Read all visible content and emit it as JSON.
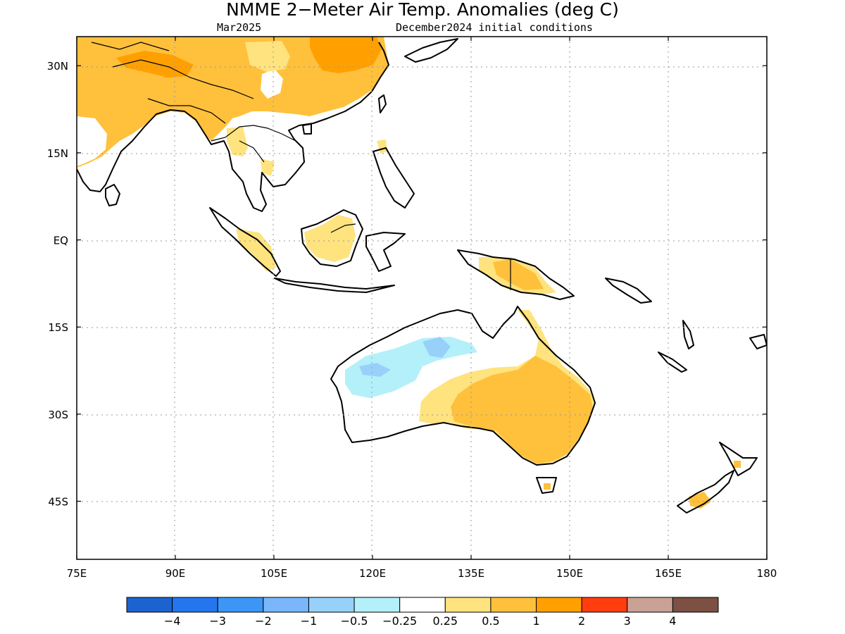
{
  "title": "NMME 2−Meter Air Temp. Anomalies (deg C)",
  "valid_month": "Mar2025",
  "initial_conditions": "December2024 initial conditions",
  "map": {
    "lon_range": [
      75,
      180
    ],
    "lat_range": [
      -55,
      35
    ],
    "lon_ticks": [
      "75E",
      "90E",
      "105E",
      "120E",
      "135E",
      "150E",
      "165E",
      "180"
    ],
    "lat_ticks": [
      "30N",
      "15N",
      "EQ",
      "15S",
      "30S",
      "45S"
    ]
  },
  "legend": {
    "colors": [
      "#1d63cf",
      "#2476ee",
      "#3c96f5",
      "#79b6fa",
      "#97d1fa",
      "#b4f0fa",
      "#ffffff",
      "#fee37f",
      "#ffc03c",
      "#ffa000",
      "#ff3d0f",
      "#c9a195",
      "#7c5043"
    ],
    "labels": [
      "−4",
      "−3",
      "−2",
      "−1",
      "−0.5",
      "−0.25",
      "0.25",
      "0.5",
      "1",
      "2",
      "3",
      "4"
    ]
  },
  "anomaly_regions": [
    {
      "region": "South and East Asia",
      "anomaly_class": "0.5 to 1",
      "color": "#ffc03c"
    },
    {
      "region": "Northern China",
      "anomaly_class": "1 to 2",
      "color": "#ffa000"
    },
    {
      "region": "Indochina",
      "anomaly_class": "0.25 to 0.5",
      "color": "#fee37f"
    },
    {
      "region": "Borneo",
      "anomaly_class": "0.25 to 0.5",
      "color": "#fee37f"
    },
    {
      "region": "Sumatra",
      "anomaly_class": "0.25 to 0.5",
      "color": "#fee37f"
    },
    {
      "region": "New Guinea",
      "anomaly_class": "0.25 to 1",
      "color": "#ffc03c"
    },
    {
      "region": "Eastern Australia",
      "anomaly_class": "0.5 to 1",
      "color": "#ffc03c"
    },
    {
      "region": "Northwest Australia",
      "anomaly_class": "-0.5 to -0.25",
      "color": "#b4f0fa"
    },
    {
      "region": "Western Australia interior",
      "anomaly_class": "-1 to -0.5",
      "color": "#97d1fa"
    },
    {
      "region": "New Zealand South Island",
      "anomaly_class": "0.5 to 1",
      "color": "#ffc03c"
    }
  ]
}
